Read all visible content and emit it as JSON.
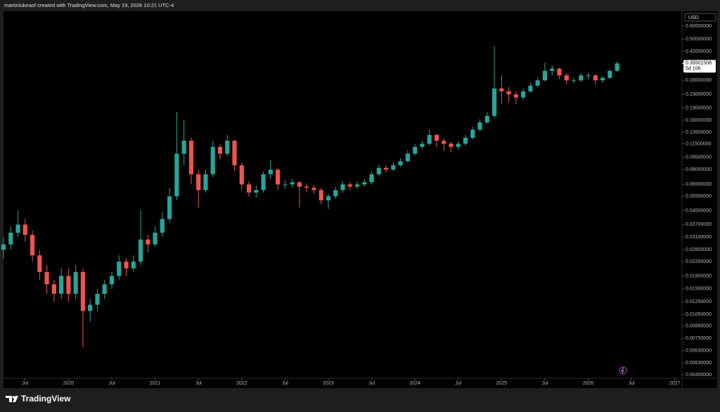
{
  "attribution": "martinlukeaof created with TradingView.com, May 19, 2026 10:21 UTC-4",
  "brand": "TradingView",
  "chart_data": {
    "type": "candlestick",
    "currency": "USD",
    "log_scale": true,
    "grid": false,
    "up_color": "#26a69a",
    "down_color": "#ef5350",
    "x": [
      "2019-04",
      "2019-05",
      "2019-06",
      "2019-07",
      "2019-08",
      "2019-09",
      "2019-10",
      "2019-11",
      "2019-12",
      "2020-01",
      "2020-02",
      "2020-03",
      "2020-04",
      "2020-05",
      "2020-06",
      "2020-07",
      "2020-08",
      "2020-09",
      "2020-10",
      "2020-11",
      "2020-12",
      "2021-01",
      "2021-02",
      "2021-03",
      "2021-04",
      "2021-05",
      "2021-06",
      "2021-07",
      "2021-08",
      "2021-09",
      "2021-10",
      "2021-11",
      "2021-12",
      "2022-01",
      "2022-02",
      "2022-03",
      "2022-04",
      "2022-05",
      "2022-06",
      "2022-07",
      "2022-08",
      "2022-09",
      "2022-10",
      "2022-11",
      "2022-12",
      "2023-01",
      "2023-02",
      "2023-03",
      "2023-04",
      "2023-05",
      "2023-06",
      "2023-07",
      "2023-08",
      "2023-09",
      "2023-10",
      "2023-11",
      "2023-12",
      "2024-01",
      "2024-02",
      "2024-03",
      "2024-04",
      "2024-05",
      "2024-06",
      "2024-07",
      "2024-08",
      "2024-09",
      "2024-10",
      "2024-11",
      "2024-12",
      "2025-01",
      "2025-02",
      "2025-03",
      "2025-04",
      "2025-05",
      "2025-06",
      "2025-07",
      "2025-08",
      "2025-09",
      "2025-10",
      "2025-11",
      "2025-12",
      "2026-01",
      "2026-02",
      "2026-03",
      "2026-04",
      "2026-05"
    ],
    "open": [
      0.026,
      0.028,
      0.033,
      0.037,
      0.032,
      0.024,
      0.019,
      0.016,
      0.014,
      0.018,
      0.014,
      0.019,
      0.011,
      0.012,
      0.014,
      0.016,
      0.018,
      0.022,
      0.02,
      0.022,
      0.03,
      0.028,
      0.033,
      0.04,
      0.055,
      0.1,
      0.12,
      0.075,
      0.06,
      0.075,
      0.11,
      0.1,
      0.12,
      0.085,
      0.065,
      0.058,
      0.06,
      0.075,
      0.08,
      0.065,
      0.065,
      0.067,
      0.063,
      0.062,
      0.06,
      0.052,
      0.055,
      0.06,
      0.065,
      0.063,
      0.065,
      0.067,
      0.075,
      0.082,
      0.08,
      0.085,
      0.09,
      0.1,
      0.11,
      0.115,
      0.13,
      0.12,
      0.115,
      0.11,
      0.115,
      0.125,
      0.14,
      0.155,
      0.17,
      0.25,
      0.24,
      0.23,
      0.22,
      0.24,
      0.26,
      0.28,
      0.32,
      0.33,
      0.3,
      0.28,
      0.28,
      0.3,
      0.3,
      0.28,
      0.29,
      0.32
    ],
    "high": [
      0.031,
      0.036,
      0.045,
      0.04,
      0.034,
      0.026,
      0.021,
      0.017,
      0.02,
      0.02,
      0.021,
      0.02,
      0.013,
      0.015,
      0.017,
      0.019,
      0.024,
      0.023,
      0.024,
      0.045,
      0.032,
      0.036,
      0.044,
      0.062,
      0.18,
      0.16,
      0.125,
      0.08,
      0.08,
      0.12,
      0.115,
      0.13,
      0.122,
      0.088,
      0.068,
      0.064,
      0.078,
      0.092,
      0.082,
      0.069,
      0.07,
      0.068,
      0.066,
      0.064,
      0.062,
      0.057,
      0.063,
      0.068,
      0.067,
      0.068,
      0.07,
      0.078,
      0.086,
      0.085,
      0.089,
      0.094,
      0.105,
      0.115,
      0.12,
      0.14,
      0.133,
      0.124,
      0.118,
      0.119,
      0.13,
      0.146,
      0.162,
      0.18,
      0.45,
      0.3,
      0.255,
      0.24,
      0.25,
      0.27,
      0.29,
      0.36,
      0.345,
      0.335,
      0.31,
      0.292,
      0.31,
      0.312,
      0.305,
      0.298,
      0.328,
      0.365
    ],
    "low": [
      0.023,
      0.026,
      0.031,
      0.029,
      0.022,
      0.017,
      0.014,
      0.0125,
      0.013,
      0.0125,
      0.013,
      0.0066,
      0.0095,
      0.011,
      0.013,
      0.015,
      0.017,
      0.018,
      0.019,
      0.021,
      0.025,
      0.027,
      0.031,
      0.038,
      0.052,
      0.085,
      0.065,
      0.047,
      0.058,
      0.072,
      0.092,
      0.097,
      0.078,
      0.06,
      0.055,
      0.054,
      0.058,
      0.07,
      0.06,
      0.061,
      0.062,
      0.047,
      0.058,
      0.057,
      0.049,
      0.046,
      0.053,
      0.058,
      0.06,
      0.061,
      0.063,
      0.065,
      0.073,
      0.077,
      0.078,
      0.083,
      0.088,
      0.097,
      0.107,
      0.112,
      0.11,
      0.104,
      0.102,
      0.106,
      0.112,
      0.122,
      0.137,
      0.152,
      0.165,
      0.2,
      0.205,
      0.2,
      0.212,
      0.235,
      0.255,
      0.275,
      0.3,
      0.285,
      0.265,
      0.268,
      0.275,
      0.283,
      0.265,
      0.27,
      0.285,
      0.315
    ],
    "close": [
      0.028,
      0.033,
      0.037,
      0.032,
      0.024,
      0.019,
      0.016,
      0.014,
      0.018,
      0.014,
      0.019,
      0.011,
      0.012,
      0.014,
      0.016,
      0.018,
      0.022,
      0.02,
      0.022,
      0.03,
      0.028,
      0.033,
      0.04,
      0.055,
      0.1,
      0.12,
      0.075,
      0.06,
      0.075,
      0.11,
      0.1,
      0.12,
      0.085,
      0.065,
      0.058,
      0.06,
      0.075,
      0.08,
      0.065,
      0.065,
      0.067,
      0.063,
      0.062,
      0.06,
      0.052,
      0.055,
      0.06,
      0.065,
      0.063,
      0.065,
      0.067,
      0.075,
      0.082,
      0.08,
      0.085,
      0.09,
      0.1,
      0.11,
      0.115,
      0.13,
      0.12,
      0.115,
      0.11,
      0.115,
      0.125,
      0.14,
      0.155,
      0.17,
      0.25,
      0.24,
      0.23,
      0.22,
      0.24,
      0.26,
      0.28,
      0.32,
      0.33,
      0.3,
      0.28,
      0.28,
      0.3,
      0.3,
      0.28,
      0.29,
      0.32,
      0.355
    ],
    "xlim": [
      "2019-04",
      "2027-02"
    ],
    "xticks": [
      {
        "value": "2019-07",
        "label": "Jul"
      },
      {
        "value": "2020-01",
        "label": "2020"
      },
      {
        "value": "2020-07",
        "label": "Jul"
      },
      {
        "value": "2021-01",
        "label": "2021"
      },
      {
        "value": "2021-07",
        "label": "Jul"
      },
      {
        "value": "2022-01",
        "label": "2022"
      },
      {
        "value": "2022-07",
        "label": "Jul"
      },
      {
        "value": "2023-01",
        "label": "2023"
      },
      {
        "value": "2023-07",
        "label": "Jul"
      },
      {
        "value": "2024-01",
        "label": "2024"
      },
      {
        "value": "2024-07",
        "label": "Jul"
      },
      {
        "value": "2025-01",
        "label": "2025"
      },
      {
        "value": "2025-07",
        "label": "Jul"
      },
      {
        "value": "2026-01",
        "label": "2026"
      },
      {
        "value": "2026-07",
        "label": "Jul"
      },
      {
        "value": "2027-01",
        "label": "2027"
      }
    ],
    "ylim": [
      0.00428,
      0.731
    ],
    "yticks": [
      {
        "value": 0.6,
        "label": "0.60000000"
      },
      {
        "value": 0.5,
        "label": "0.50000000"
      },
      {
        "value": 0.42,
        "label": "0.42000000"
      },
      {
        "value": 0.28,
        "label": "0.28000000"
      },
      {
        "value": 0.23,
        "label": "0.23000000"
      },
      {
        "value": 0.19,
        "label": "0.19000000"
      },
      {
        "value": 0.16,
        "label": "0.16000000"
      },
      {
        "value": 0.135,
        "label": "0.13500000"
      },
      {
        "value": 0.115,
        "label": "0.11500000"
      },
      {
        "value": 0.095,
        "label": "0.09500000"
      },
      {
        "value": 0.08,
        "label": "0.08000000"
      },
      {
        "value": 0.065,
        "label": "0.06500000"
      },
      {
        "value": 0.055,
        "label": "0.05500000"
      },
      {
        "value": 0.045,
        "label": "0.04500000"
      },
      {
        "value": 0.037,
        "label": "0.03700000"
      },
      {
        "value": 0.031,
        "label": "0.03100000"
      },
      {
        "value": 0.026,
        "label": "0.02600000"
      },
      {
        "value": 0.022,
        "label": "0.02200000"
      },
      {
        "value": 0.018,
        "label": "0.01800000"
      },
      {
        "value": 0.015,
        "label": "0.01500000"
      },
      {
        "value": 0.0125,
        "label": "0.01250000"
      },
      {
        "value": 0.0105,
        "label": "0.01050000"
      },
      {
        "value": 0.0089,
        "label": "0.00890000"
      },
      {
        "value": 0.0075,
        "label": "0.00750000"
      },
      {
        "value": 0.0063,
        "label": "0.00630000"
      },
      {
        "value": 0.0053,
        "label": "0.00530000"
      },
      {
        "value": 0.0045,
        "label": "0.00450000"
      }
    ],
    "last_price": {
      "value": 0.35501508,
      "label": "0.35501508"
    },
    "countdown": "5d 10h"
  }
}
